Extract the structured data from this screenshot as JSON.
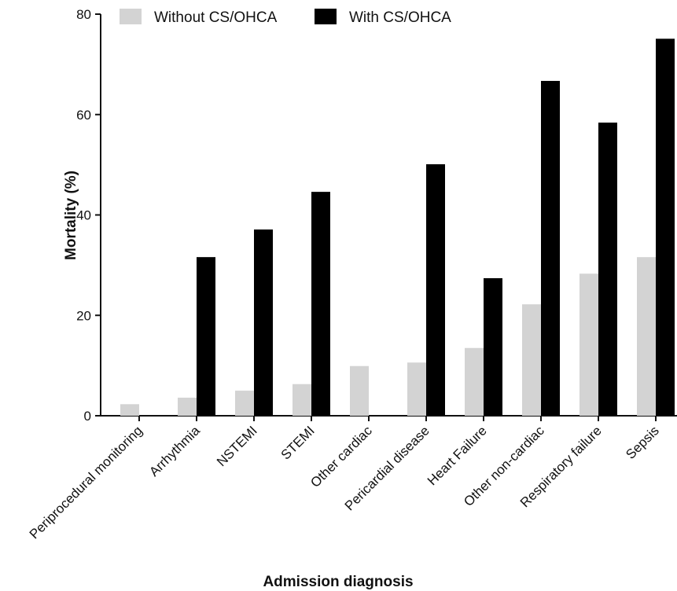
{
  "chart_data": {
    "type": "bar",
    "x_label": "Admission diagnosis",
    "y_label": "Mortality  (%)",
    "categories": [
      "Periprocedural monitoring",
      "Arrhythmia",
      "NSTEMI",
      "STEMI",
      "Other cardiac",
      "Pericardial disease",
      "Heart Failure",
      "Other non-cardiac",
      "Respiratory failure",
      "Sepsis"
    ],
    "series": [
      {
        "name": "Without CS/OHCA",
        "color": "#d3d3d3",
        "values": [
          2.3,
          3.6,
          5.0,
          6.3,
          9.9,
          10.6,
          13.5,
          22.2,
          28.3,
          31.6
        ]
      },
      {
        "name": "With CS/OHCA",
        "color": "#000000",
        "values": [
          0,
          31.6,
          37.1,
          44.6,
          0,
          50.1,
          27.4,
          66.7,
          58.4,
          75.1
        ]
      }
    ],
    "ylim": [
      0,
      80
    ],
    "yticks": [
      0,
      20,
      40,
      60,
      80
    ],
    "grid": false,
    "legend": "top"
  }
}
